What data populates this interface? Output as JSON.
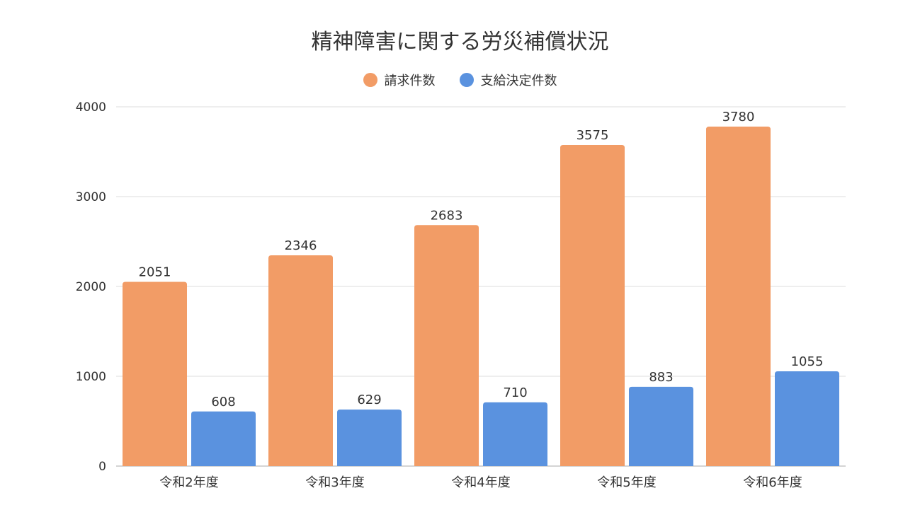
{
  "chart_data": {
    "type": "bar",
    "title": "精神障害に関する労災補償状況",
    "categories": [
      "令和2年度",
      "令和3年度",
      "令和4年度",
      "令和5年度",
      "令和6年度"
    ],
    "series": [
      {
        "name": "請求件数",
        "values": [
          2051,
          2346,
          2683,
          3575,
          3780
        ],
        "color": "#F29C66"
      },
      {
        "name": "支給決定件数",
        "values": [
          608,
          629,
          710,
          883,
          1055
        ],
        "color": "#5A92DF"
      }
    ],
    "yticks": [
      0,
      1000,
      2000,
      3000,
      4000
    ],
    "ylim": [
      0,
      4000
    ],
    "grid": true,
    "legend_position": "top-center",
    "data_labels": true
  }
}
